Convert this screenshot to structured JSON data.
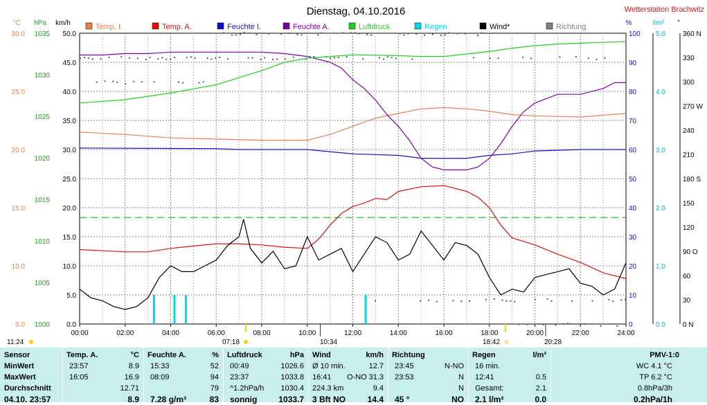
{
  "title": "Dienstag, 04.10.2016",
  "station": "Wetterstation Brachwitz",
  "axes": {
    "temp_unit": "°C",
    "press_unit": "hPa",
    "wind_unit": "km/h",
    "hum_unit": "%",
    "rain_unit": "l/m²",
    "dir_unit": "°"
  },
  "legend": [
    {
      "name": "Temp. I.",
      "color": "#e8804a"
    },
    {
      "name": "Temp. A.",
      "color": "#e01010"
    },
    {
      "name": "Feuchte I.",
      "color": "#1010c8"
    },
    {
      "name": "Feuchte A.",
      "color": "#8000a0"
    },
    {
      "name": "Luftdruck",
      "color": "#20d020"
    },
    {
      "name": "Regen",
      "color": "#00d8e8"
    },
    {
      "name": "Wind*",
      "color": "#000000"
    },
    {
      "name": "Richtung",
      "color": "#808080"
    }
  ],
  "sun": {
    "rise": "07:18",
    "set": "18:42",
    "left_time": "11:24",
    "moon_rise": "10:34",
    "moon_set": "20:28"
  },
  "chart_data": {
    "type": "line",
    "x_ticks": [
      "00:00",
      "02:00",
      "04:00",
      "06:00",
      "08:00",
      "10:00",
      "12:00",
      "14:00",
      "16:00",
      "18:00",
      "20:00",
      "22:00",
      "24:00"
    ],
    "xlim": [
      0,
      24
    ],
    "ylim_wind": [
      0,
      50
    ],
    "ylim_temp": [
      5,
      30
    ],
    "ylim_press": [
      1000,
      1035
    ],
    "ylim_hum": [
      0,
      100
    ],
    "ylim_rain": [
      0,
      5
    ],
    "ylim_dir": [
      0,
      360
    ],
    "wind_ticks": [
      "0.0",
      "5.0",
      "10.0",
      "15.0",
      "20.0",
      "25.0",
      "30.0",
      "35.0",
      "40.0",
      "45.0",
      "50.0"
    ],
    "temp_ticks": [
      "5.0",
      "10.0",
      "15.0",
      "20.0",
      "25.0",
      "30.0"
    ],
    "press_ticks": [
      "1000",
      "1005",
      "1010",
      "1015",
      "1020",
      "1025",
      "1030",
      "1035"
    ],
    "hum_ticks": [
      "0",
      "10",
      "20",
      "30",
      "40",
      "50",
      "60",
      "70",
      "80",
      "90",
      "100"
    ],
    "rain_ticks": [
      "0.0",
      "1.0",
      "2.0",
      "3.0",
      "4.0",
      "5.0"
    ],
    "dir_ticks": [
      "0 N",
      "30",
      "60",
      "90 O",
      "120",
      "150",
      "180 S",
      "210",
      "240",
      "270 W",
      "300",
      "330",
      "360 N"
    ],
    "reference_wind": 18.3,
    "series": [
      {
        "name": "Temp. A.",
        "axis": "temp",
        "x": [
          0,
          1,
          2,
          3,
          4,
          5,
          6,
          7,
          8,
          9,
          10,
          10.5,
          11,
          11.5,
          12,
          12.5,
          13,
          13.5,
          14,
          15,
          16,
          17,
          17.5,
          18,
          18.5,
          19,
          19.5,
          20,
          21,
          22,
          23,
          24
        ],
        "y": [
          11.4,
          11.3,
          11.2,
          11.2,
          11.5,
          11.7,
          11.9,
          11.9,
          11.8,
          11.6,
          11.5,
          12.3,
          13.5,
          14.5,
          15.1,
          15.4,
          15.8,
          15.7,
          16.4,
          16.8,
          16.9,
          16.4,
          15.9,
          15.0,
          13.5,
          12.4,
          12.1,
          11.8,
          11.0,
          10.3,
          9.4,
          8.9
        ]
      },
      {
        "name": "Temp. I.",
        "axis": "temp",
        "x": [
          0,
          2,
          4,
          6,
          8,
          10,
          11,
          12,
          13,
          14,
          15,
          16,
          17,
          18,
          19,
          20,
          22,
          24
        ],
        "y": [
          21.5,
          21.3,
          21.0,
          20.9,
          20.8,
          20.8,
          21.3,
          22.0,
          22.7,
          23.1,
          23.5,
          23.6,
          23.5,
          23.3,
          23.0,
          22.9,
          22.8,
          23.1
        ]
      },
      {
        "name": "Feuchte I.",
        "axis": "hum",
        "x": [
          0,
          6,
          7,
          10,
          12,
          14,
          15,
          16,
          17,
          18,
          19,
          20,
          22,
          24
        ],
        "y": [
          60.5,
          60.3,
          60.0,
          60.0,
          58.5,
          58.0,
          57.0,
          57.0,
          57.0,
          58.0,
          58.5,
          59.5,
          60.0,
          60.0
        ]
      },
      {
        "name": "Feuchte A.",
        "axis": "hum",
        "x": [
          0,
          1,
          2,
          3,
          4,
          5,
          6,
          7,
          8,
          9,
          10,
          11,
          11.5,
          12,
          12.5,
          13,
          13.5,
          14,
          14.5,
          15,
          15.5,
          16,
          16.5,
          17,
          17.5,
          18,
          18.5,
          19,
          19.5,
          20,
          21,
          22,
          23,
          23.5,
          24
        ],
        "y": [
          92.5,
          92.5,
          93,
          93,
          93.5,
          93.5,
          93.5,
          93.5,
          93.5,
          93,
          92,
          90,
          88,
          84,
          81,
          77,
          72,
          68,
          63,
          57,
          54,
          53,
          53,
          53,
          54,
          57,
          62,
          68,
          73,
          76,
          79,
          79,
          81,
          83,
          83
        ]
      },
      {
        "name": "Luftdruck",
        "axis": "press",
        "x": [
          0,
          2,
          4,
          6,
          8,
          9,
          10,
          12,
          14,
          15,
          16,
          17,
          18,
          19,
          20,
          21,
          22,
          23,
          24
        ],
        "y": [
          1026.6,
          1027.0,
          1027.8,
          1028.8,
          1030.5,
          1031.5,
          1032.0,
          1032.4,
          1032.3,
          1032.2,
          1032.2,
          1032.5,
          1032.8,
          1033.2,
          1033.5,
          1033.7,
          1033.8,
          1033.9,
          1034.0
        ]
      },
      {
        "name": "Wind*",
        "axis": "wind",
        "x": [
          0,
          0.5,
          1,
          1.5,
          2,
          2.5,
          3,
          3.5,
          4,
          4.5,
          5,
          5.5,
          6,
          6.5,
          7,
          7.2,
          7.5,
          8,
          8.5,
          9,
          9.5,
          10,
          10.5,
          11,
          11.5,
          12,
          12.5,
          13,
          13.5,
          14,
          14.5,
          15,
          15.5,
          16,
          16.5,
          17,
          17.5,
          18,
          18.5,
          19,
          19.5,
          20,
          20.5,
          21,
          21.5,
          22,
          22.5,
          23,
          23.5,
          24
        ],
        "y": [
          6,
          4.5,
          4,
          3,
          2.5,
          3,
          4.5,
          8,
          10,
          9,
          9,
          10,
          11,
          13.5,
          15,
          18,
          13,
          10.5,
          12.5,
          9.5,
          10,
          15,
          11,
          12,
          13,
          9,
          12,
          15,
          14,
          11,
          12,
          16,
          13.5,
          11,
          14,
          13.5,
          12,
          8,
          5,
          6,
          5.5,
          8,
          8.5,
          9,
          9.5,
          7,
          6.5,
          5,
          6,
          10.5
        ]
      },
      {
        "name": "Regen",
        "axis": "rain",
        "type": "bar",
        "x": [
          3.25,
          4.15,
          4.65,
          12.55
        ],
        "y": [
          0.5,
          0.5,
          0.5,
          0.5
        ]
      }
    ]
  },
  "stats": {
    "cols": [
      {
        "head": "Sensor",
        "unit": "",
        "rows": [
          "MinWert",
          "MaxWert",
          "Durchschnitt",
          "04.10. 23:57"
        ]
      },
      {
        "head": "Temp. A.",
        "unit": "°C",
        "rows": [
          [
            "23:57",
            "8.9"
          ],
          [
            "16:05",
            "16.9"
          ],
          [
            "",
            "12.71"
          ],
          [
            "",
            "8.9"
          ]
        ]
      },
      {
        "head": "Feuchte A.",
        "unit": "%",
        "rows": [
          [
            "15:33",
            "52"
          ],
          [
            "08:09",
            "94"
          ],
          [
            "",
            "79"
          ],
          [
            "7.28 g/m³",
            "83"
          ]
        ]
      },
      {
        "head": "Luftdruck",
        "unit": "hPa",
        "rows": [
          [
            "00:49",
            "1026.6"
          ],
          [
            "23:37",
            "1033.8"
          ],
          [
            "^1.2hPa/h",
            "1030.4"
          ],
          [
            "sonnig",
            "1033.7"
          ]
        ]
      },
      {
        "head": "Wind",
        "unit": "km/h",
        "rows": [
          [
            "Ø 10 min.",
            "",
            "12.7"
          ],
          [
            "16:41",
            "O-NO",
            "31.3"
          ],
          [
            "224.3 km",
            "",
            "9.4"
          ],
          [
            "3 Bft NO",
            "",
            "14.4"
          ]
        ]
      },
      {
        "head": "Richtung",
        "unit": "",
        "rows": [
          [
            "23:45",
            "N-NO"
          ],
          [
            "23:53",
            "N"
          ],
          [
            "",
            "N"
          ],
          [
            "45 °",
            "NO"
          ]
        ]
      },
      {
        "head": "Regen",
        "unit": "l/m²",
        "rows": [
          [
            "16 min.",
            ""
          ],
          [
            "12:41",
            "0.5"
          ],
          [
            "Gesamt:",
            "2.1"
          ],
          [
            "2.1 l/m²",
            "0.0"
          ]
        ]
      },
      {
        "head": "PMV-1:0",
        "unit": "",
        "rows": [
          "WC 4.1 °C",
          "TP 6.2 °C",
          "0.8hPa/3h",
          "0.2hPa/1h"
        ]
      }
    ]
  }
}
